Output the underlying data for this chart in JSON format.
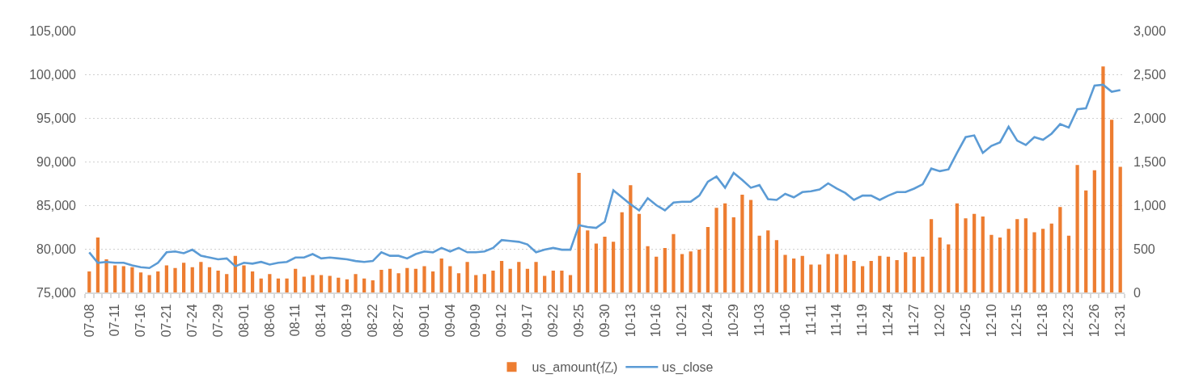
{
  "chart_data": {
    "type": "bar",
    "categories": [
      "07-08",
      null,
      null,
      "07-11",
      null,
      null,
      "07-16",
      null,
      null,
      "07-21",
      null,
      null,
      "07-24",
      null,
      null,
      "07-29",
      null,
      null,
      "08-01",
      null,
      null,
      "08-06",
      null,
      null,
      "08-11",
      null,
      null,
      "08-14",
      null,
      null,
      "08-19",
      null,
      null,
      "08-22",
      null,
      null,
      "08-27",
      null,
      null,
      "09-01",
      null,
      null,
      "09-04",
      null,
      null,
      "09-09",
      null,
      null,
      "09-12",
      null,
      null,
      "09-17",
      null,
      null,
      "09-22",
      null,
      null,
      "09-25",
      null,
      null,
      "09-30",
      null,
      null,
      "10-13",
      null,
      null,
      "10-16",
      null,
      null,
      "10-21",
      null,
      null,
      "10-24",
      null,
      null,
      "10-29",
      null,
      null,
      "11-03",
      null,
      null,
      "11-06",
      null,
      null,
      "11-11",
      null,
      null,
      "11-14",
      null,
      null,
      "11-19",
      null,
      null,
      "11-24",
      null,
      null,
      "11-27",
      null,
      null,
      "12-02",
      null,
      null,
      "12-05",
      null,
      null,
      "12-10",
      null,
      null,
      "12-15",
      null,
      null,
      "12-18",
      null,
      null,
      "12-23",
      null,
      null,
      "12-26",
      null,
      null,
      "12-31"
    ],
    "series": [
      {
        "name": "us_amount(亿)",
        "color": "#ed7d31",
        "values": [
          77400,
          81300,
          78800,
          78100,
          78000,
          77900,
          77300,
          77000,
          77400,
          78100,
          77800,
          78400,
          77900,
          78500,
          77900,
          77500,
          77100,
          79200,
          78100,
          77400,
          76600,
          77100,
          76600,
          76600,
          77700,
          76800,
          77000,
          77000,
          76900,
          76700,
          76500,
          77100,
          76600,
          76400,
          77600,
          77700,
          77200,
          77800,
          77700,
          78000,
          77400,
          78900,
          78000,
          77200,
          78500,
          77000,
          77100,
          77500,
          78600,
          77700,
          78500,
          77700,
          78500,
          76900,
          77500,
          77500,
          77000,
          88700,
          82100,
          80600,
          81400,
          80800,
          84200,
          87300,
          84000,
          80300,
          79100,
          80100,
          81700,
          79400,
          79700,
          79900,
          82500,
          84700,
          85200,
          83600,
          86200,
          85600,
          81500,
          82100,
          81000,
          79300,
          78900,
          79200,
          78200,
          78200,
          79400,
          79400,
          79300,
          78600,
          78000,
          78600,
          79200,
          79100,
          78700,
          79600,
          79100,
          79100,
          83400,
          81300,
          80500,
          85200,
          83500,
          84000,
          83700,
          81600,
          81300,
          82300,
          83400,
          83500,
          81900,
          82300,
          82900,
          84800,
          81500,
          89600,
          86700,
          89000,
          100900,
          94800,
          89400
        ]
      },
      {
        "name": "us_close",
        "type": "line",
        "axis": "y2",
        "color": "#5b9bd5",
        "values": [
          460,
          340,
          350,
          340,
          340,
          310,
          290,
          280,
          340,
          460,
          470,
          450,
          490,
          420,
          400,
          380,
          390,
          300,
          340,
          330,
          350,
          320,
          340,
          350,
          400,
          400,
          440,
          390,
          400,
          390,
          380,
          360,
          350,
          360,
          460,
          420,
          420,
          390,
          440,
          470,
          460,
          510,
          470,
          510,
          460,
          460,
          470,
          510,
          600,
          590,
          580,
          550,
          460,
          490,
          510,
          490,
          490,
          770,
          750,
          740,
          810,
          1170,
          1090,
          1010,
          940,
          1080,
          1000,
          940,
          1030,
          1040,
          1040,
          1110,
          1270,
          1330,
          1200,
          1370,
          1290,
          1200,
          1230,
          1070,
          1060,
          1130,
          1090,
          1150,
          1160,
          1180,
          1250,
          1190,
          1140,
          1060,
          1110,
          1110,
          1060,
          1110,
          1150,
          1150,
          1190,
          1240,
          1420,
          1390,
          1410,
          1600,
          1780,
          1800,
          1600,
          1680,
          1720,
          1900,
          1740,
          1690,
          1780,
          1750,
          1820,
          1930,
          1890,
          2100,
          2110,
          2370,
          2380,
          2300,
          2320
        ]
      }
    ],
    "ylim": [
      75000,
      105000
    ],
    "yticks": [
      {
        "value": 75000,
        "label": "75,000"
      },
      {
        "value": 80000,
        "label": "80,000"
      },
      {
        "value": 85000,
        "label": "85,000"
      },
      {
        "value": 90000,
        "label": "90,000"
      },
      {
        "value": 95000,
        "label": "95,000"
      },
      {
        "value": 100000,
        "label": "100,000"
      },
      {
        "value": 105000,
        "label": "105,000"
      }
    ],
    "y2lim": [
      0,
      3000
    ],
    "y2ticks": [
      0,
      500,
      {
        "value": 1000,
        "label": "1,000"
      },
      {
        "value": 1500,
        "label": "1,500"
      },
      {
        "value": 2000,
        "label": "2,000"
      },
      {
        "value": 2500,
        "label": "2,500"
      },
      {
        "value": 3000,
        "label": "3,000"
      }
    ],
    "grid": "y",
    "legend": "bottom"
  }
}
